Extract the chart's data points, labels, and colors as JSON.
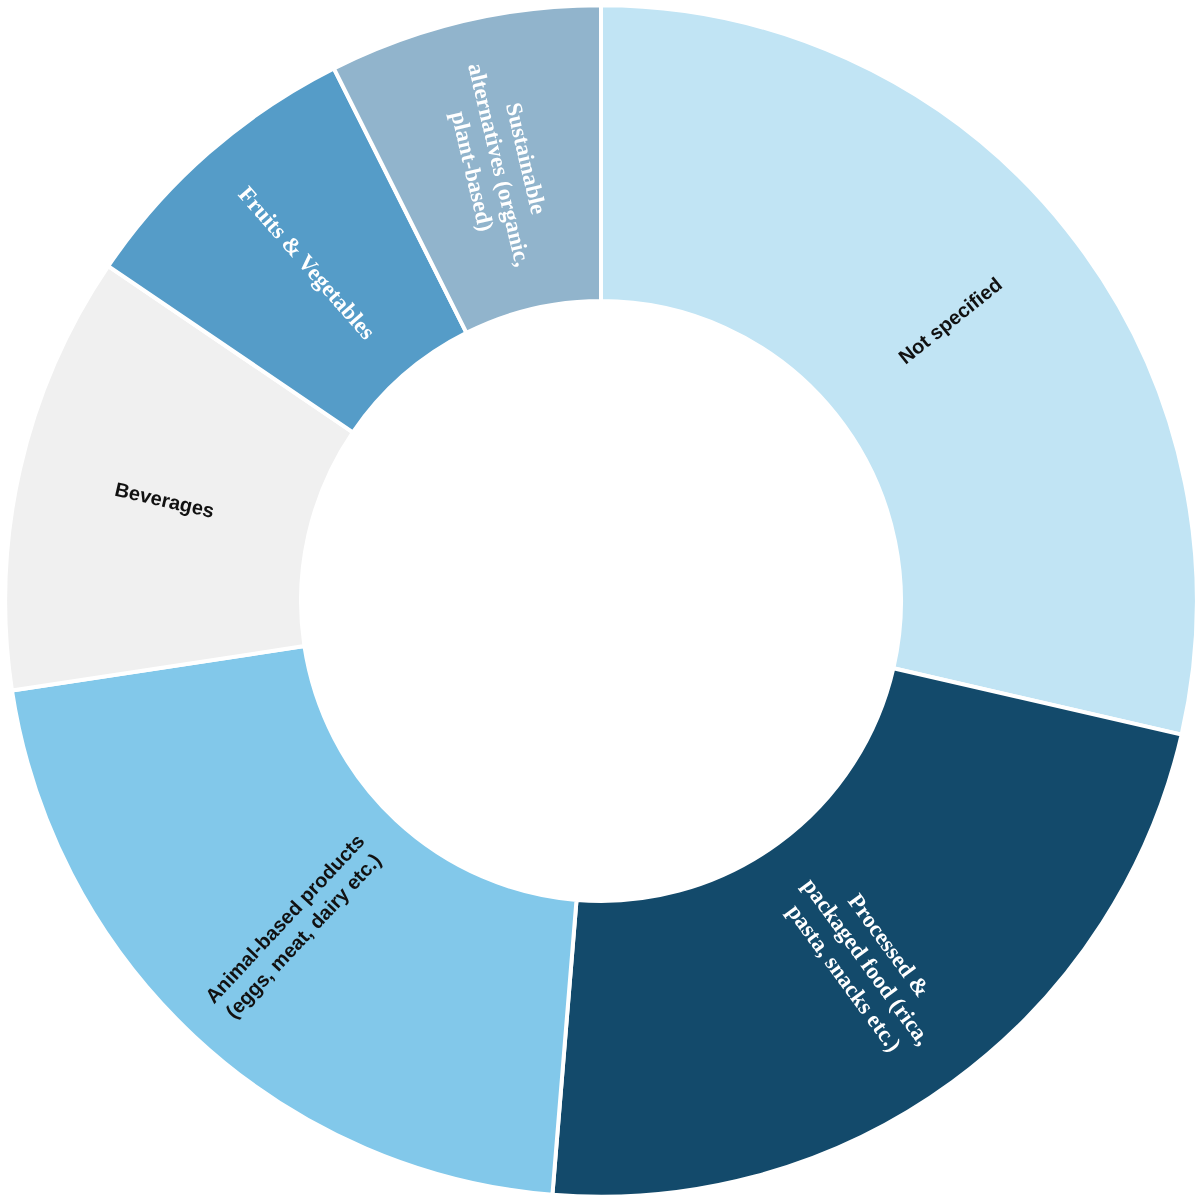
{
  "chart_data": {
    "type": "donut",
    "categories": [
      "Not specified",
      "Processed &\npackaged food (rica,\npasta, snacks etc.)",
      "Animal-based products\n(eggs, meat, dairy etc.)",
      "Beverages",
      "Fruits & Vegetables",
      "Sustainable\nalternatives (organic,\nplant-based)"
    ],
    "values": [
      28.6,
      22.7,
      21.3,
      11.9,
      8.1,
      7.4
    ],
    "colors": [
      "#c1e4f4",
      "#134a6b",
      "#82c8ea",
      "#f0f0f0",
      "#559cc8",
      "#91b4cc"
    ]
  }
}
